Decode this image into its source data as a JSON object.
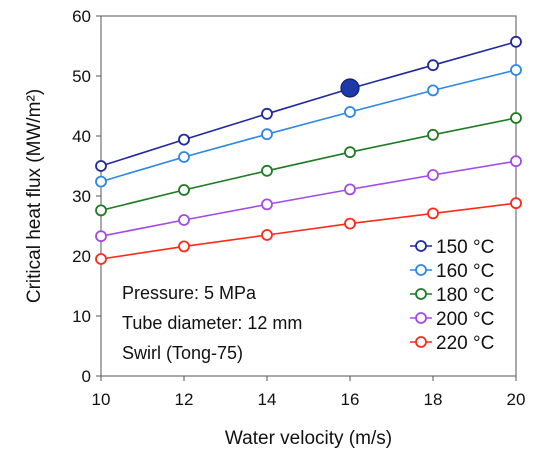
{
  "chart_data": {
    "type": "line",
    "title": "",
    "xlabel": "Water velocity (m/s)",
    "ylabel": "Critical heat flux (MW/m²)",
    "xlim": [
      10,
      20
    ],
    "ylim": [
      0,
      60
    ],
    "x_ticks": [
      10,
      12,
      14,
      16,
      18,
      20
    ],
    "y_ticks": [
      0,
      10,
      20,
      30,
      40,
      50,
      60
    ],
    "grid": false,
    "legend_position": "bottom-right",
    "x": [
      10,
      12,
      14,
      16,
      18,
      20
    ],
    "series": [
      {
        "name": "150 °C",
        "color": "#1f2a9e",
        "values": [
          35.0,
          39.4,
          43.7,
          47.9,
          51.8,
          55.7
        ]
      },
      {
        "name": "160 °C",
        "color": "#2e86e6",
        "values": [
          32.4,
          36.5,
          40.3,
          44.0,
          47.6,
          51.0
        ]
      },
      {
        "name": "180 °C",
        "color": "#1f7a24",
        "values": [
          27.6,
          31.0,
          34.2,
          37.3,
          40.2,
          43.0
        ]
      },
      {
        "name": "200 °C",
        "color": "#a24be6",
        "values": [
          23.3,
          26.0,
          28.6,
          31.1,
          33.5,
          35.8
        ]
      },
      {
        "name": "220 °C",
        "color": "#ff2a1a",
        "values": [
          19.5,
          21.6,
          23.5,
          25.4,
          27.1,
          28.8
        ]
      }
    ],
    "highlight": {
      "x": 16,
      "y": 48.0,
      "color": "#1f3aa8"
    },
    "annotations": [
      "Pressure: 5 MPa",
      "Tube diameter: 12 mm",
      "Swirl (Tong-75)"
    ]
  }
}
